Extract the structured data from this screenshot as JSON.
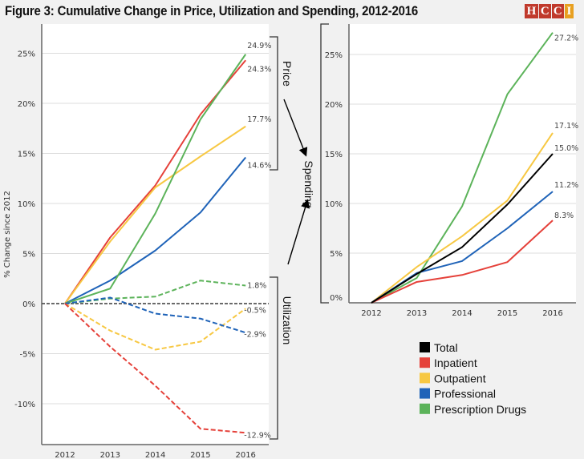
{
  "title": "Figure 3: Cumulative Change in Price, Utilization and Spending, 2012-2016",
  "logo": {
    "letters": [
      "H",
      "C",
      "C",
      "I"
    ],
    "colors": [
      "#c0392b",
      "#c0392b",
      "#c0392b",
      "#e8a020"
    ]
  },
  "colors": {
    "total": "#000000",
    "inpatient": "#e5413a",
    "outpatient": "#f7c843",
    "professional": "#1f63b8",
    "drugs": "#5cb35a",
    "zero_line": "#555555"
  },
  "annotations": {
    "price": "Price",
    "utilization": "Utilization",
    "spending": "Spending"
  },
  "chart_data": [
    {
      "type": "line",
      "title": "",
      "ylabel": "% Change since 2012",
      "xlabel": "",
      "categories": [
        "2012",
        "2013",
        "2014",
        "2015",
        "2016"
      ],
      "ylim": [
        -13.5,
        27
      ],
      "yticks": [
        -10,
        -5,
        0,
        5,
        10,
        15,
        20,
        25
      ],
      "ytick_labels": [
        "-10%",
        "-5%",
        "0%",
        "5%",
        "10%",
        "15%",
        "20%",
        "25%"
      ],
      "grid": true,
      "series": [
        {
          "key": "inpatient",
          "group": "price",
          "style": "solid",
          "values": [
            0,
            6.6,
            11.8,
            18.9,
            24.3
          ],
          "end_label": "24.3%"
        },
        {
          "key": "outpatient",
          "group": "price",
          "style": "solid",
          "values": [
            0,
            6.2,
            11.6,
            14.7,
            17.7
          ],
          "end_label": "17.7%"
        },
        {
          "key": "professional",
          "group": "price",
          "style": "solid",
          "values": [
            0,
            2.3,
            5.3,
            9.1,
            14.6
          ],
          "end_label": "14.6%"
        },
        {
          "key": "drugs",
          "group": "price",
          "style": "solid",
          "values": [
            0,
            1.5,
            9.0,
            18.4,
            24.9
          ],
          "end_label": "24.9%"
        },
        {
          "key": "drugs",
          "group": "utilization",
          "style": "dashed",
          "values": [
            0,
            0.5,
            0.7,
            2.3,
            1.8
          ],
          "end_label": "1.8%"
        },
        {
          "key": "outpatient",
          "group": "utilization",
          "style": "dashed",
          "values": [
            0,
            -2.7,
            -4.6,
            -3.8,
            -0.5
          ],
          "end_label": "-0.5%"
        },
        {
          "key": "professional",
          "group": "utilization",
          "style": "dashed",
          "values": [
            0,
            0.6,
            -1.0,
            -1.5,
            -2.9
          ],
          "end_label": "-2.9%"
        },
        {
          "key": "inpatient",
          "group": "utilization",
          "style": "dashed",
          "values": [
            0,
            -4.3,
            -8.2,
            -12.5,
            -12.9
          ],
          "end_label": "-12.9%"
        }
      ]
    },
    {
      "type": "line",
      "title": "",
      "xlabel": "",
      "ylabel": "",
      "categories": [
        "2012",
        "2013",
        "2014",
        "2015",
        "2016"
      ],
      "ylim": [
        0,
        28
      ],
      "yticks": [
        0,
        5,
        10,
        15,
        20,
        25
      ],
      "ytick_labels": [
        "0%",
        "5%",
        "10%",
        "15%",
        "20%",
        "25%"
      ],
      "grid": true,
      "series": [
        {
          "key": "drugs",
          "name": "Prescription Drugs",
          "values": [
            0,
            2.5,
            9.7,
            21.0,
            27.2
          ],
          "end_label": "27.2%"
        },
        {
          "key": "outpatient",
          "name": "Outpatient",
          "values": [
            0,
            3.6,
            6.7,
            10.3,
            17.1
          ],
          "end_label": "17.1%"
        },
        {
          "key": "professional",
          "name": "Professional",
          "values": [
            0,
            3.0,
            4.2,
            7.5,
            11.2
          ],
          "end_label": "11.2%"
        },
        {
          "key": "inpatient",
          "name": "Inpatient",
          "values": [
            0,
            2.1,
            2.8,
            4.1,
            8.3
          ],
          "end_label": "8.3%"
        },
        {
          "key": "total",
          "name": "Total",
          "values": [
            0,
            2.9,
            5.6,
            9.9,
            15.0
          ],
          "end_label": "15.0%"
        }
      ],
      "legend": {
        "placement": "bottom-right",
        "entries": [
          {
            "key": "total",
            "label": "Total"
          },
          {
            "key": "inpatient",
            "label": "Inpatient"
          },
          {
            "key": "outpatient",
            "label": "Outpatient"
          },
          {
            "key": "professional",
            "label": "Professional"
          },
          {
            "key": "drugs",
            "label": "Prescription Drugs"
          }
        ]
      }
    }
  ]
}
